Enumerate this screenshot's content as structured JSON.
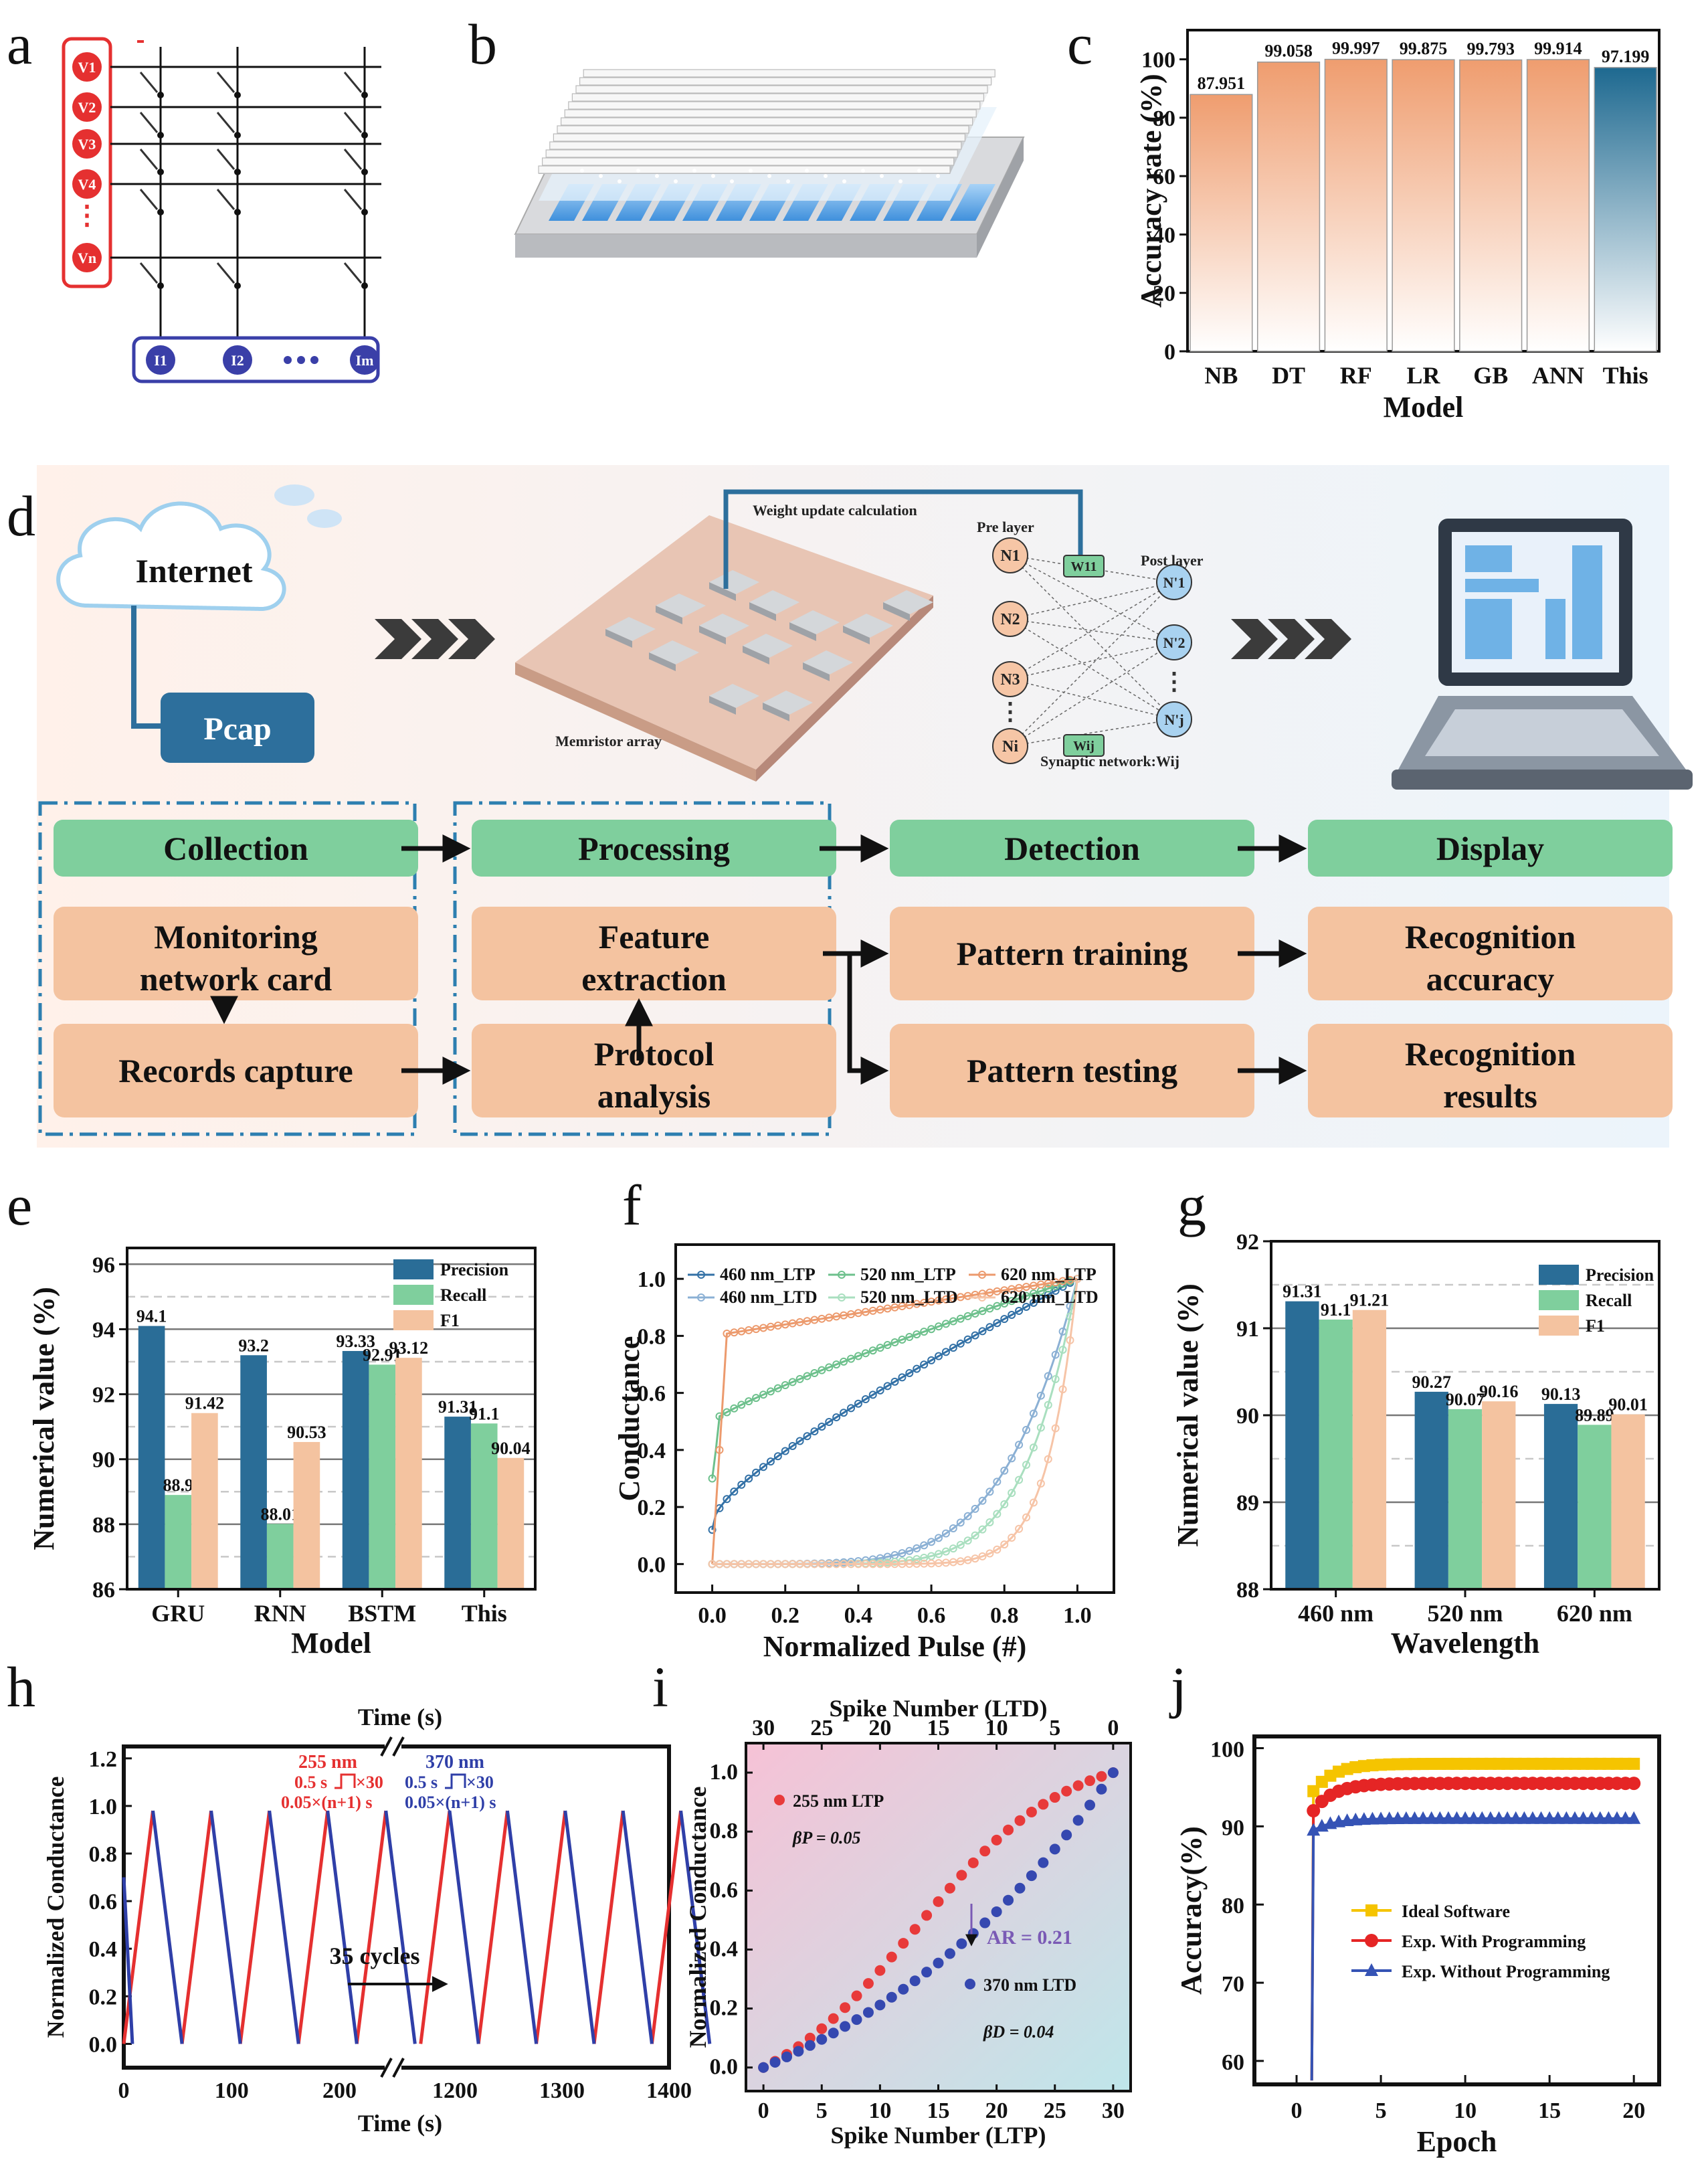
{
  "figure_panels": [
    "a",
    "b",
    "c",
    "d",
    "e",
    "f",
    "g",
    "h",
    "i",
    "j"
  ],
  "colors": {
    "orange": "#f0a57a",
    "blue": "#2a6d97",
    "green": "#7fcf9d",
    "peach": "#f4c3a0",
    "red": "#e03030",
    "navy": "#3040a0",
    "yellow": "#f5c400"
  },
  "panel_a": {
    "inputs": [
      "V1",
      "V2",
      "V3",
      "V4",
      "Vn"
    ],
    "outputs": [
      "I1",
      "I2",
      "Im"
    ]
  },
  "panel_d": {
    "internet": "Internet",
    "pcap": "Pcap",
    "weight_update": "Weight update calculation",
    "pre_layer": "Pre layer",
    "post_layer": "Post layer",
    "memristor_array": "Memristor array",
    "synaptic_network": "Synaptic network:Wij",
    "w_top": "W11",
    "w_bottom": "Wij",
    "pre_nodes": [
      "N1",
      "N2",
      "N3",
      "Ni"
    ],
    "post_nodes": [
      "N'1",
      "N'2",
      "N'j"
    ],
    "flow": {
      "headers": [
        "Collection",
        "Processing",
        "Detection",
        "Display"
      ],
      "col1": [
        "Monitoring network card",
        "Records capture"
      ],
      "col2": [
        "Feature extraction",
        "Protocol analysis"
      ],
      "col3": [
        "Pattern training",
        "Pattern testing"
      ],
      "col4": [
        "Recognition accuracy",
        "Recognition results"
      ]
    }
  },
  "chart_data": [
    {
      "panel": "c",
      "type": "bar",
      "categories": [
        "NB",
        "DT",
        "RF",
        "LR",
        "GB",
        "ANN",
        "This"
      ],
      "values": [
        87.951,
        99.058,
        99.997,
        99.875,
        99.793,
        99.914,
        97.199
      ],
      "labels": [
        "87.951",
        "99.058",
        "99.997",
        "99.875",
        "99.793",
        "99.914",
        "97.199"
      ],
      "xlabel": "Model",
      "ylabel": "Accuracy rate (%)",
      "ylim": [
        0,
        110
      ],
      "yticks": [
        0,
        20,
        40,
        60,
        80,
        100
      ]
    },
    {
      "panel": "e",
      "type": "bar",
      "categories": [
        "GRU",
        "RNN",
        "BSTM",
        "This"
      ],
      "series": [
        {
          "name": "Precision",
          "values": [
            94.1,
            93.2,
            93.33,
            91.31
          ],
          "labels": [
            "94.1",
            "93.2",
            "93.33",
            "91.31"
          ]
        },
        {
          "name": "Recall",
          "values": [
            88.9,
            88.01,
            92.91,
            91.1
          ],
          "labels": [
            "88.9",
            "88.01",
            "92.91",
            "91.1"
          ]
        },
        {
          "name": "F1",
          "values": [
            91.42,
            90.53,
            93.12,
            90.04
          ],
          "labels": [
            "91.42",
            "90.53",
            "93.12",
            "90.04"
          ]
        }
      ],
      "xlabel": "Model",
      "ylabel": "Numerical value (%)",
      "ylim": [
        86,
        96.5
      ],
      "yticks": [
        86,
        88,
        90,
        92,
        94,
        96
      ]
    },
    {
      "panel": "f",
      "type": "line",
      "xlabel": "Normalized Pulse (#)",
      "ylabel": "Conductance",
      "xlim": [
        -0.1,
        1.1
      ],
      "ylim": [
        -0.1,
        1.12
      ],
      "xticks": [
        "0.0",
        "0.2",
        "0.4",
        "0.6",
        "0.8",
        "1.0"
      ],
      "yticks": [
        "0.0",
        "0.2",
        "0.4",
        "0.6",
        "0.8",
        "1.0"
      ],
      "series": [
        {
          "name": "460 nm_LTP",
          "start": 0.12,
          "end": 1.0,
          "shape": "log"
        },
        {
          "name": "520 nm_LTP",
          "start": 0.3,
          "end": 1.0,
          "shape": "fast"
        },
        {
          "name": "620 nm_LTP",
          "start": 0.78,
          "end": 1.0,
          "shape": "jump"
        },
        {
          "name": "460 nm_LTD",
          "start": 0.0,
          "end": 1.0,
          "shape": "exp"
        },
        {
          "name": "520 nm_LTD",
          "start": 0.0,
          "end": 1.0,
          "shape": "exp2"
        },
        {
          "name": "620 nm_LTD",
          "start": 0.0,
          "end": 1.0,
          "shape": "exp3"
        }
      ]
    },
    {
      "panel": "g",
      "type": "bar",
      "categories": [
        "460 nm",
        "520 nm",
        "620 nm"
      ],
      "series": [
        {
          "name": "Precision",
          "values": [
            91.31,
            90.27,
            90.13
          ],
          "labels": [
            "91.31",
            "90.27",
            "90.13"
          ]
        },
        {
          "name": "Recall",
          "values": [
            91.1,
            90.07,
            89.89
          ],
          "labels": [
            "91.1",
            "90.07",
            "89.89"
          ]
        },
        {
          "name": "F1",
          "values": [
            91.21,
            90.16,
            90.01
          ],
          "labels": [
            "91.21",
            "90.16",
            "90.01"
          ]
        }
      ],
      "xlabel": "Wavelength",
      "ylabel": "Numerical value (%)",
      "ylim": [
        88,
        92
      ],
      "yticks": [
        88,
        89,
        90,
        91,
        92
      ]
    },
    {
      "panel": "h",
      "type": "line",
      "xlabel": "Time (s)",
      "top_xlabel": "Time (s)",
      "ylabel": "Normalized Conductance",
      "xticks_left": [
        "0",
        "100",
        "200"
      ],
      "xticks_right": [
        "1200",
        "1300",
        "1400"
      ],
      "yticks": [
        "0.0",
        "0.2",
        "0.4",
        "0.6",
        "0.8",
        "1.0",
        "1.2"
      ],
      "cycles_label": "35 cycles",
      "red_wavelength": "255 nm",
      "blue_wavelength": "370 nm",
      "pulse_width": "0.5 s",
      "pulse_count": "×30",
      "interval": "0.05×(n+1) s",
      "cycle_period_s": 54,
      "peak": 0.98,
      "ylim": [
        -0.1,
        1.25
      ]
    },
    {
      "panel": "i",
      "type": "scatter",
      "xlabel": "Spike Number (LTP)",
      "top_xlabel": "Spike Number (LTD)",
      "ylabel": "Normalized Conductance",
      "xticks": [
        "0",
        "5",
        "10",
        "15",
        "20",
        "25",
        "30"
      ],
      "top_xticks": [
        "30",
        "25",
        "20",
        "15",
        "10",
        "5",
        "0"
      ],
      "yticks": [
        "0.0",
        "0.2",
        "0.4",
        "0.6",
        "0.8",
        "1.0"
      ],
      "series": [
        {
          "name": "255 nm LTP",
          "beta": "βP = 0.05",
          "color": "#e83a3a"
        },
        {
          "name": "370 nm LTD",
          "beta": "βD = 0.04",
          "color": "#3548b0"
        }
      ],
      "annotation": "AR = 0.21",
      "xlim": [
        -1.5,
        31.5
      ],
      "ylim": [
        -0.08,
        1.1
      ]
    },
    {
      "panel": "j",
      "type": "line",
      "xlabel": "Epoch",
      "ylabel": "Accuracy(%)",
      "xticks": [
        "0",
        "5",
        "10",
        "15",
        "20"
      ],
      "yticks": [
        "60",
        "70",
        "80",
        "90",
        "100"
      ],
      "xlim": [
        -2.5,
        21.5
      ],
      "ylim": [
        57,
        101.5
      ],
      "series": [
        {
          "name": "Ideal Software",
          "final": 98.0,
          "color": "#f5c400",
          "marker": "square"
        },
        {
          "name": "Exp. With Programming",
          "final": 95.5,
          "color": "#e52525",
          "marker": "circle"
        },
        {
          "name": "Exp. Without Programming",
          "final": 91.0,
          "color": "#3553b5",
          "marker": "triangle"
        }
      ]
    }
  ]
}
